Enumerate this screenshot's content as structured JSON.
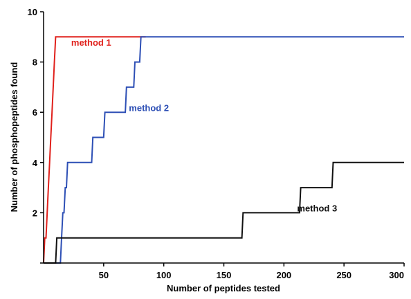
{
  "chart_data": {
    "type": "line",
    "title": "",
    "xlabel": "Number of peptides tested",
    "ylabel": "Number of phosphopeptides found",
    "xlim": [
      0,
      300
    ],
    "ylim": [
      0,
      10
    ],
    "x_ticks": [
      50,
      100,
      150,
      200,
      250,
      300
    ],
    "y_ticks": [
      0,
      2,
      4,
      6,
      8,
      10
    ],
    "x_tick_labels": [
      "50",
      "100",
      "150",
      "200",
      "250",
      "300"
    ],
    "y_tick_labels": [
      "",
      "2",
      "4",
      "6",
      "8",
      "10"
    ],
    "grid": false,
    "legend": "inline labels",
    "series": [
      {
        "name": "method 1",
        "color": "#e0201b",
        "label_at": [
          23,
          8.65
        ],
        "points": [
          [
            0,
            0
          ],
          [
            1,
            1
          ],
          [
            2,
            1
          ],
          [
            3,
            2
          ],
          [
            4,
            3
          ],
          [
            5,
            4
          ],
          [
            6,
            5
          ],
          [
            7,
            6
          ],
          [
            8,
            7
          ],
          [
            9,
            8
          ],
          [
            10,
            9
          ],
          [
            85,
            9
          ]
        ]
      },
      {
        "name": "method 2",
        "color": "#2d4fb5",
        "label_at": [
          71,
          6.05
        ],
        "points": [
          [
            0,
            0
          ],
          [
            14,
            0
          ],
          [
            15,
            1
          ],
          [
            16,
            2
          ],
          [
            17,
            2
          ],
          [
            18,
            3
          ],
          [
            19,
            3
          ],
          [
            20,
            4
          ],
          [
            21,
            4
          ],
          [
            40,
            4
          ],
          [
            41,
            5
          ],
          [
            50,
            5
          ],
          [
            51,
            6
          ],
          [
            68,
            6
          ],
          [
            69,
            7
          ],
          [
            75,
            7
          ],
          [
            76,
            8
          ],
          [
            80,
            8
          ],
          [
            81,
            9
          ],
          [
            300,
            9
          ]
        ]
      },
      {
        "name": "method 3",
        "color": "#111111",
        "label_at": [
          211,
          2.05
        ],
        "points": [
          [
            0,
            0
          ],
          [
            10,
            0
          ],
          [
            11,
            1
          ],
          [
            165,
            1
          ],
          [
            166,
            2
          ],
          [
            213,
            2
          ],
          [
            214,
            3
          ],
          [
            240,
            3
          ],
          [
            241,
            4
          ],
          [
            300,
            4
          ]
        ]
      }
    ]
  }
}
